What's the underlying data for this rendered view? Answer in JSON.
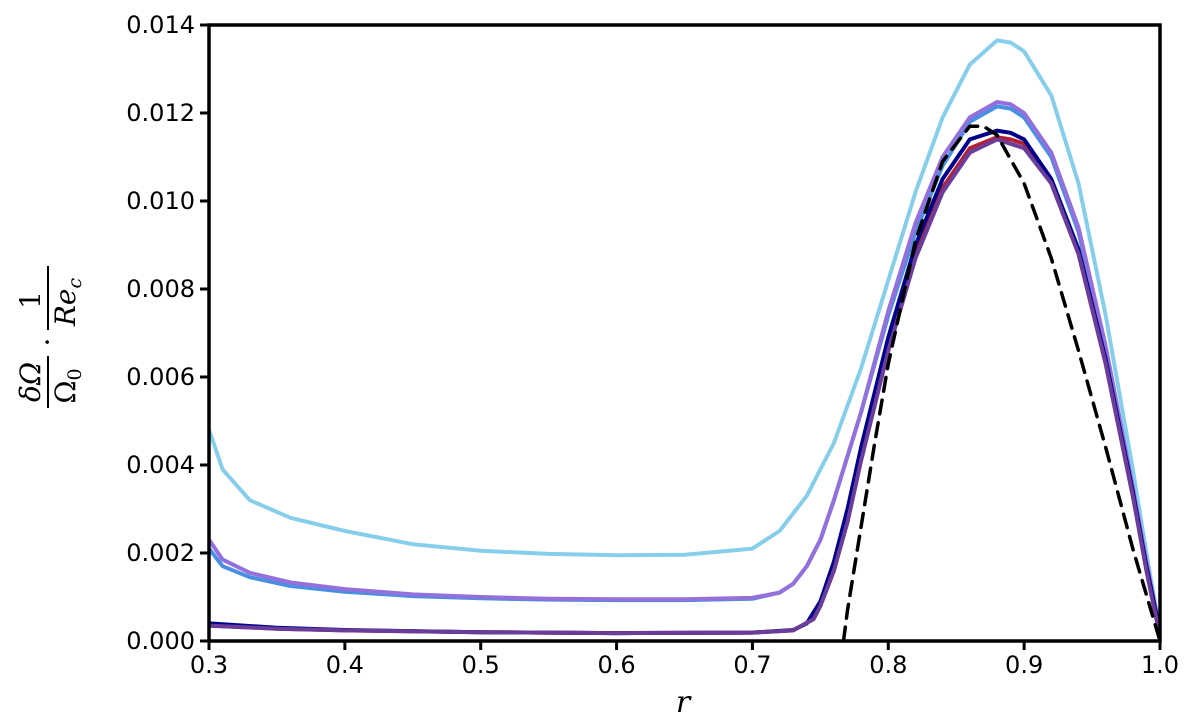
{
  "chart_data": {
    "type": "line",
    "title": "",
    "xlabel": "r",
    "ylabel": {
      "num1": "δΩ",
      "den1": "Ω",
      "den1_sub": "0",
      "dot": "·",
      "num2": "1",
      "den2": "Re",
      "den2_sub": "c"
    },
    "xlim": [
      0.3,
      1.0
    ],
    "ylim": [
      0.0,
      0.014
    ],
    "xticks": [
      "0.3",
      "0.4",
      "0.5",
      "0.6",
      "0.7",
      "0.8",
      "0.9",
      "1.0"
    ],
    "yticks": [
      "0.000",
      "0.002",
      "0.004",
      "0.006",
      "0.008",
      "0.010",
      "0.012",
      "0.014"
    ],
    "grid": false,
    "legend": "none",
    "series": [
      {
        "color": "#87ceeb",
        "dash": false,
        "x": [
          0.3,
          0.31,
          0.33,
          0.36,
          0.4,
          0.45,
          0.5,
          0.55,
          0.6,
          0.65,
          0.7,
          0.72,
          0.74,
          0.76,
          0.78,
          0.8,
          0.82,
          0.84,
          0.86,
          0.88,
          0.89,
          0.9,
          0.92,
          0.94,
          0.96,
          0.98,
          0.99,
          1.0
        ],
        "y": [
          0.0048,
          0.0039,
          0.0032,
          0.0028,
          0.0025,
          0.0022,
          0.00205,
          0.00198,
          0.00195,
          0.00196,
          0.0021,
          0.0025,
          0.0033,
          0.0045,
          0.0062,
          0.0082,
          0.0102,
          0.0119,
          0.0131,
          0.01365,
          0.0136,
          0.0134,
          0.0124,
          0.0104,
          0.0074,
          0.0039,
          0.002,
          0.0002
        ]
      },
      {
        "color": "#4a90e2",
        "dash": false,
        "x": [
          0.3,
          0.31,
          0.33,
          0.36,
          0.4,
          0.45,
          0.5,
          0.55,
          0.6,
          0.65,
          0.7,
          0.72,
          0.73,
          0.74,
          0.75,
          0.76,
          0.78,
          0.8,
          0.82,
          0.84,
          0.86,
          0.88,
          0.89,
          0.9,
          0.92,
          0.94,
          0.96,
          0.98,
          0.99,
          1.0
        ],
        "y": [
          0.0021,
          0.0017,
          0.00145,
          0.00125,
          0.00112,
          0.00102,
          0.00097,
          0.00094,
          0.00093,
          0.00093,
          0.00096,
          0.0011,
          0.0013,
          0.0017,
          0.0023,
          0.0032,
          0.0052,
          0.0074,
          0.0093,
          0.0108,
          0.0118,
          0.01215,
          0.0121,
          0.0119,
          0.011,
          0.0093,
          0.0066,
          0.0034,
          0.0017,
          0.0002
        ]
      },
      {
        "color": "#9370db",
        "dash": false,
        "x": [
          0.3,
          0.31,
          0.33,
          0.36,
          0.4,
          0.45,
          0.5,
          0.55,
          0.6,
          0.65,
          0.7,
          0.72,
          0.73,
          0.74,
          0.75,
          0.76,
          0.78,
          0.8,
          0.82,
          0.84,
          0.86,
          0.88,
          0.89,
          0.9,
          0.92,
          0.94,
          0.96,
          0.98,
          0.99,
          1.0
        ],
        "y": [
          0.0023,
          0.00185,
          0.00155,
          0.00133,
          0.00118,
          0.00106,
          0.001,
          0.00096,
          0.00095,
          0.00095,
          0.00098,
          0.0011,
          0.0013,
          0.0017,
          0.0023,
          0.0032,
          0.0052,
          0.0075,
          0.0095,
          0.011,
          0.0119,
          0.01225,
          0.0122,
          0.012,
          0.0111,
          0.0094,
          0.0067,
          0.0035,
          0.0018,
          0.0002
        ]
      },
      {
        "color": "#b22234",
        "dash": false,
        "x": [
          0.3,
          0.35,
          0.4,
          0.5,
          0.6,
          0.7,
          0.73,
          0.745,
          0.75,
          0.76,
          0.77,
          0.78,
          0.8,
          0.82,
          0.84,
          0.86,
          0.88,
          0.89,
          0.9,
          0.92,
          0.94,
          0.96,
          0.98,
          0.99,
          1.0
        ],
        "y": [
          0.00035,
          0.00028,
          0.00024,
          0.0002,
          0.00018,
          0.00019,
          0.00024,
          0.0005,
          0.0008,
          0.0016,
          0.0028,
          0.0042,
          0.0067,
          0.0088,
          0.0103,
          0.0112,
          0.01145,
          0.0114,
          0.0113,
          0.0104,
          0.0088,
          0.0063,
          0.0033,
          0.0017,
          0.0002
        ]
      },
      {
        "color": "#00008b",
        "dash": false,
        "x": [
          0.3,
          0.35,
          0.4,
          0.5,
          0.6,
          0.7,
          0.73,
          0.74,
          0.75,
          0.76,
          0.77,
          0.78,
          0.8,
          0.82,
          0.84,
          0.86,
          0.88,
          0.89,
          0.9,
          0.92,
          0.94,
          0.96,
          0.98,
          0.99,
          1.0
        ],
        "y": [
          0.0004,
          0.0003,
          0.00025,
          0.0002,
          0.00018,
          0.00019,
          0.00025,
          0.0004,
          0.0009,
          0.0018,
          0.003,
          0.0044,
          0.0069,
          0.009,
          0.0105,
          0.0114,
          0.0116,
          0.01155,
          0.0114,
          0.0105,
          0.0089,
          0.0064,
          0.0034,
          0.0017,
          0.0002
        ]
      },
      {
        "color": "#6a3d9a",
        "dash": false,
        "x": [
          0.3,
          0.35,
          0.4,
          0.5,
          0.6,
          0.7,
          0.73,
          0.745,
          0.75,
          0.76,
          0.77,
          0.78,
          0.8,
          0.82,
          0.84,
          0.86,
          0.88,
          0.89,
          0.9,
          0.92,
          0.94,
          0.96,
          0.98,
          0.99,
          1.0
        ],
        "y": [
          0.00035,
          0.00028,
          0.00024,
          0.0002,
          0.00018,
          0.00019,
          0.00024,
          0.0005,
          0.0008,
          0.0016,
          0.0027,
          0.0041,
          0.0066,
          0.0087,
          0.0102,
          0.0111,
          0.0114,
          0.0113,
          0.0112,
          0.0104,
          0.0088,
          0.0063,
          0.0033,
          0.0016,
          0.0001
        ]
      },
      {
        "color": "#000000",
        "dash": true,
        "x": [
          0.767,
          0.77,
          0.78,
          0.79,
          0.8,
          0.82,
          0.84,
          0.86,
          0.87,
          0.88,
          0.9,
          0.92,
          0.94,
          0.96,
          0.98,
          1.0
        ],
        "y": [
          0.0,
          0.0007,
          0.0026,
          0.0045,
          0.0063,
          0.0091,
          0.0109,
          0.0117,
          0.0117,
          0.0115,
          0.0104,
          0.0087,
          0.0066,
          0.0044,
          0.0021,
          0.0
        ]
      }
    ]
  }
}
